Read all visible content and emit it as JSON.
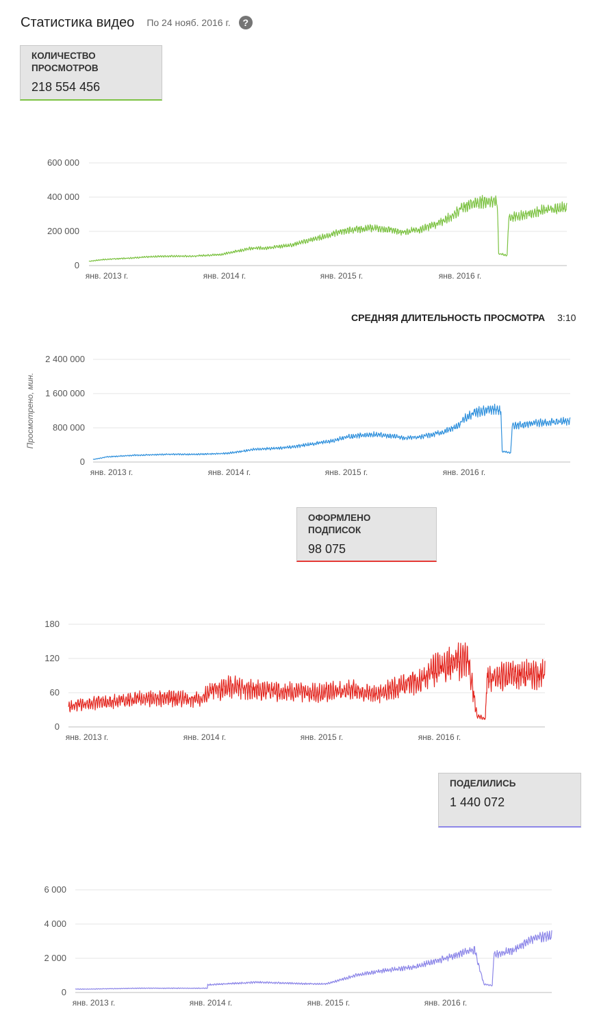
{
  "header": {
    "title": "Статистика видео",
    "date": "По 24 нояб. 2016 г.",
    "help_glyph": "?"
  },
  "cards": {
    "views": {
      "label": "КОЛИЧЕСТВО ПРОСМОТРОВ",
      "value": "218 554 456",
      "color": "#7cc242"
    },
    "subs": {
      "label": "ОФОРМЛЕНО ПОДПИСОК",
      "value": "98 075",
      "color": "#e53935"
    },
    "shares": {
      "label": "ПОДЕЛИЛИСЬ",
      "value": "1 440 072",
      "color": "#8c86e8"
    }
  },
  "avg": {
    "label": "СРЕДНЯЯ ДЛИТЕЛЬНОСТЬ ПРОСМОТРА",
    "value": "3:10"
  },
  "chart_data": [
    {
      "type": "line",
      "title": "",
      "xlabel": "",
      "ylabel": "",
      "color": "#7cc242",
      "ylim": [
        0,
        600000
      ],
      "yticks": [
        "600 000",
        "400 000",
        "200 000",
        "0"
      ],
      "xticks": [
        "янв. 2013 г.",
        "янв. 2014 г.",
        "янв. 2015 г.",
        "янв. 2016 г."
      ],
      "series": [
        {
          "x": [
            "2012-11-20",
            "2013-01-01",
            "2013-04-01",
            "2013-07-01",
            "2013-10-01",
            "2014-01-01",
            "2014-03-01",
            "2014-04-01",
            "2014-06-01",
            "2014-08-01",
            "2014-10-01",
            "2014-12-01",
            "2015-01-01",
            "2015-02-15",
            "2015-04-01",
            "2015-06-01",
            "2015-07-01",
            "2015-09-01",
            "2015-11-01",
            "2015-12-15",
            "2016-01-01",
            "2016-02-01",
            "2016-03-01",
            "2016-04-01",
            "2016-04-25",
            "2016-04-29",
            "2016-05-25",
            "2016-05-30",
            "2016-07-01",
            "2016-09-01",
            "2016-11-24"
          ],
          "values": [
            25000,
            35000,
            45000,
            55000,
            55000,
            65000,
            90000,
            100000,
            105000,
            120000,
            150000,
            180000,
            200000,
            210000,
            220000,
            210000,
            195000,
            210000,
            250000,
            300000,
            330000,
            360000,
            370000,
            380000,
            370000,
            70000,
            60000,
            280000,
            290000,
            320000,
            340000
          ]
        }
      ]
    },
    {
      "type": "line",
      "title": "",
      "xlabel": "",
      "ylabel": "Просмотрено, мин.",
      "color": "#2f90dc",
      "ylim": [
        0,
        2400000
      ],
      "yticks": [
        "2 400 000",
        "1 600 000",
        "800 000",
        "0"
      ],
      "xticks": [
        "янв. 2013 г.",
        "янв. 2014 г.",
        "янв. 2015 г.",
        "янв. 2016 г."
      ],
      "series": [
        {
          "x": [
            "2012-11-20",
            "2013-01-01",
            "2013-04-01",
            "2013-07-01",
            "2013-10-01",
            "2014-01-01",
            "2014-03-01",
            "2014-04-01",
            "2014-06-01",
            "2014-08-01",
            "2014-10-01",
            "2014-12-01",
            "2015-01-01",
            "2015-02-15",
            "2015-04-01",
            "2015-06-01",
            "2015-07-01",
            "2015-09-01",
            "2015-11-01",
            "2015-12-15",
            "2016-01-01",
            "2016-02-01",
            "2016-03-01",
            "2016-04-01",
            "2016-04-25",
            "2016-04-29",
            "2016-05-25",
            "2016-05-30",
            "2016-07-01",
            "2016-09-01",
            "2016-11-24"
          ],
          "values": [
            60000,
            120000,
            160000,
            180000,
            180000,
            200000,
            260000,
            300000,
            320000,
            360000,
            430000,
            500000,
            580000,
            620000,
            650000,
            600000,
            560000,
            600000,
            700000,
            850000,
            1000000,
            1150000,
            1200000,
            1250000,
            1200000,
            250000,
            220000,
            850000,
            870000,
            920000,
            960000
          ]
        }
      ]
    },
    {
      "type": "line",
      "title": "",
      "xlabel": "",
      "ylabel": "",
      "color": "#e3261f",
      "ylim": [
        0,
        180
      ],
      "yticks": [
        "180",
        "120",
        "60",
        "0"
      ],
      "xticks": [
        "янв. 2013 г.",
        "янв. 2014 г.",
        "янв. 2015 г.",
        "янв. 2016 г."
      ],
      "series": [
        {
          "x": [
            "2012-11-20",
            "2013-01-01",
            "2013-04-01",
            "2013-07-01",
            "2013-10-01",
            "2014-01-01",
            "2014-02-01",
            "2014-04-01",
            "2014-07-01",
            "2014-10-01",
            "2015-01-01",
            "2015-04-01",
            "2015-07-01",
            "2015-10-01",
            "2015-12-01",
            "2016-01-01",
            "2016-03-01",
            "2016-04-01",
            "2016-04-29",
            "2016-05-25",
            "2016-05-30",
            "2016-08-01",
            "2016-11-24"
          ],
          "values": [
            35,
            40,
            45,
            50,
            50,
            48,
            62,
            70,
            65,
            62,
            60,
            65,
            58,
            75,
            90,
            105,
            115,
            120,
            20,
            15,
            85,
            90,
            92
          ]
        }
      ]
    },
    {
      "type": "line",
      "title": "",
      "xlabel": "",
      "ylabel": "",
      "color": "#8c86e8",
      "ylim": [
        0,
        6000
      ],
      "yticks": [
        "6 000",
        "4 000",
        "2 000",
        "0"
      ],
      "xticks": [
        "янв. 2013 г.",
        "янв. 2014 г.",
        "янв. 2015 г.",
        "янв. 2016 г."
      ],
      "series": [
        {
          "x": [
            "2012-11-20",
            "2013-01-01",
            "2013-06-01",
            "2013-12-31",
            "2014-01-01",
            "2014-06-01",
            "2014-12-01",
            "2015-01-01",
            "2015-04-01",
            "2015-07-01",
            "2015-10-01",
            "2016-01-01",
            "2016-04-01",
            "2016-04-29",
            "2016-05-25",
            "2016-05-30",
            "2016-08-01",
            "2016-10-01",
            "2016-11-24"
          ],
          "values": [
            200,
            200,
            250,
            250,
            450,
            600,
            500,
            500,
            1000,
            1300,
            1500,
            2000,
            2500,
            500,
            400,
            2200,
            2500,
            3200,
            3300
          ]
        }
      ]
    }
  ]
}
